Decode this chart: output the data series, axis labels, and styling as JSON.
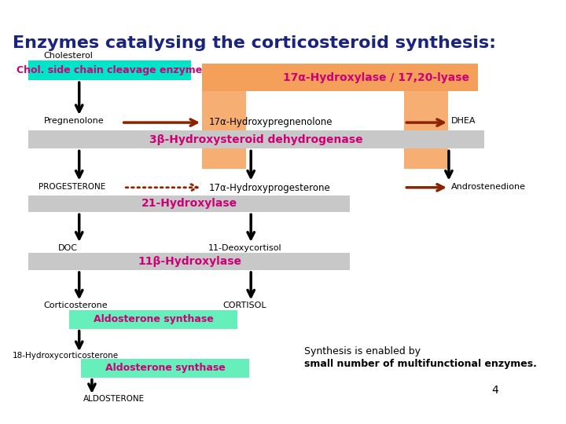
{
  "title": "Enzymes catalysing the corticosteroid synthesis:",
  "page_number": "4",
  "note_line1": "Synthesis is enabled by",
  "note_line2": "small number of multifunctional enzymes.",
  "colors": {
    "bg_color": "#ffffff",
    "cyan_box": "#00e5c8",
    "orange_box": "#f5a05a",
    "gray_bar": "#c8c8c8",
    "green_box": "#66eebb",
    "magenta_text": "#cc0077",
    "dark_arrow": "#8B2200",
    "black": "#000000",
    "dark_navy": "#1a237e"
  }
}
